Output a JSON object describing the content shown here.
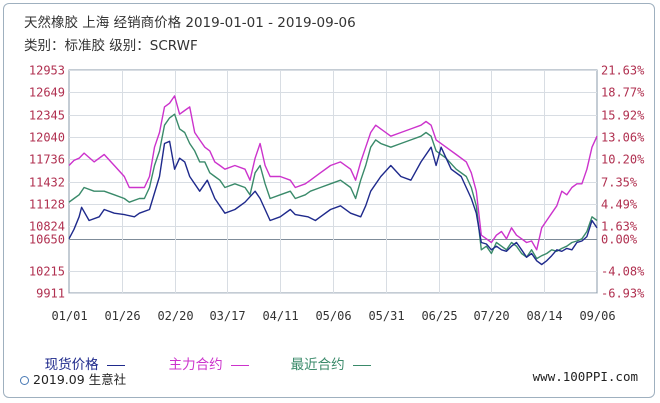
{
  "header": {
    "title": "天然橡胶 上海 经销商价格 2019-01-01 - 2019-09-06",
    "subtitle": "类别：标准胶 级别：SCRWF"
  },
  "legend": {
    "items": [
      {
        "label": "现货价格",
        "color": "#1f2a8c"
      },
      {
        "label": "主力合约",
        "color": "#cc33cc"
      },
      {
        "label": "最近合约",
        "color": "#3a8a6a"
      }
    ]
  },
  "footer": {
    "copyright": "2019.09 生意社",
    "site": "www.100PPI.com"
  },
  "colors": {
    "spot": "#1f2a8c",
    "main": "#cc33cc",
    "near": "#3a8a6a",
    "left_axis_text": "#b03050",
    "right_axis_text": "#b03050"
  },
  "chart_data": {
    "type": "line",
    "x_tick_labels": [
      "01/01",
      "01/26",
      "02/20",
      "03/17",
      "04/11",
      "05/06",
      "05/31",
      "06/25",
      "07/20",
      "08/14",
      "09/06"
    ],
    "left_ticks": [
      "12953",
      "12649",
      "12345",
      "12040",
      "11736",
      "11432",
      "11128",
      "10824",
      "10650",
      "10215",
      "9911"
    ],
    "right_ticks": [
      "21.63%",
      "18.77%",
      "15.92%",
      "13.06%",
      "10.20%",
      "7.35%",
      "4.49%",
      "1.63%",
      "0.00%",
      "-4.08%",
      "-6.93%"
    ],
    "ylim": [
      9911,
      12953
    ],
    "baseline": 10650,
    "grid": true,
    "legend_position": "bottom",
    "series": [
      {
        "name": "现货价格",
        "color_key": "spot",
        "points": [
          [
            0,
            10650
          ],
          [
            2,
            10780
          ],
          [
            4,
            10950
          ],
          [
            5,
            11080
          ],
          [
            8,
            10900
          ],
          [
            12,
            10950
          ],
          [
            14,
            11050
          ],
          [
            18,
            11000
          ],
          [
            22,
            10980
          ],
          [
            26,
            10950
          ],
          [
            28,
            11000
          ],
          [
            32,
            11050
          ],
          [
            36,
            11500
          ],
          [
            38,
            11950
          ],
          [
            40,
            11980
          ],
          [
            42,
            11600
          ],
          [
            44,
            11750
          ],
          [
            46,
            11700
          ],
          [
            48,
            11500
          ],
          [
            52,
            11300
          ],
          [
            55,
            11450
          ],
          [
            58,
            11200
          ],
          [
            62,
            11000
          ],
          [
            66,
            11050
          ],
          [
            70,
            11150
          ],
          [
            74,
            11300
          ],
          [
            76,
            11200
          ],
          [
            80,
            10900
          ],
          [
            84,
            10950
          ],
          [
            88,
            11050
          ],
          [
            90,
            10980
          ],
          [
            95,
            10950
          ],
          [
            98,
            10900
          ],
          [
            100,
            10950
          ],
          [
            104,
            11050
          ],
          [
            108,
            11100
          ],
          [
            112,
            11000
          ],
          [
            116,
            10950
          ],
          [
            118,
            11100
          ],
          [
            120,
            11300
          ],
          [
            124,
            11500
          ],
          [
            128,
            11650
          ],
          [
            132,
            11500
          ],
          [
            136,
            11450
          ],
          [
            140,
            11700
          ],
          [
            144,
            11900
          ],
          [
            146,
            11650
          ],
          [
            148,
            11900
          ],
          [
            152,
            11600
          ],
          [
            156,
            11500
          ],
          [
            160,
            11200
          ],
          [
            162,
            11000
          ],
          [
            164,
            10600
          ],
          [
            166,
            10580
          ],
          [
            168,
            10500
          ],
          [
            170,
            10550
          ],
          [
            172,
            10500
          ],
          [
            174,
            10480
          ],
          [
            176,
            10550
          ],
          [
            178,
            10600
          ],
          [
            180,
            10500
          ],
          [
            182,
            10400
          ],
          [
            184,
            10450
          ],
          [
            186,
            10350
          ],
          [
            188,
            10300
          ],
          [
            190,
            10350
          ],
          [
            192,
            10420
          ],
          [
            194,
            10500
          ],
          [
            196,
            10480
          ],
          [
            198,
            10520
          ],
          [
            200,
            10500
          ],
          [
            202,
            10600
          ],
          [
            204,
            10620
          ],
          [
            206,
            10680
          ],
          [
            208,
            10900
          ],
          [
            210,
            10800
          ]
        ]
      },
      {
        "name": "主力合约",
        "color_key": "main",
        "points": [
          [
            0,
            11650
          ],
          [
            2,
            11720
          ],
          [
            4,
            11750
          ],
          [
            6,
            11820
          ],
          [
            10,
            11700
          ],
          [
            14,
            11800
          ],
          [
            18,
            11650
          ],
          [
            22,
            11500
          ],
          [
            24,
            11350
          ],
          [
            28,
            11350
          ],
          [
            30,
            11350
          ],
          [
            32,
            11500
          ],
          [
            34,
            11900
          ],
          [
            36,
            12100
          ],
          [
            38,
            12450
          ],
          [
            40,
            12500
          ],
          [
            42,
            12600
          ],
          [
            44,
            12350
          ],
          [
            46,
            12400
          ],
          [
            48,
            12450
          ],
          [
            50,
            12100
          ],
          [
            52,
            12000
          ],
          [
            54,
            11900
          ],
          [
            56,
            11850
          ],
          [
            58,
            11700
          ],
          [
            60,
            11650
          ],
          [
            62,
            11600
          ],
          [
            66,
            11650
          ],
          [
            70,
            11600
          ],
          [
            72,
            11450
          ],
          [
            74,
            11750
          ],
          [
            76,
            11950
          ],
          [
            78,
            11650
          ],
          [
            80,
            11500
          ],
          [
            84,
            11500
          ],
          [
            88,
            11450
          ],
          [
            90,
            11350
          ],
          [
            94,
            11400
          ],
          [
            96,
            11450
          ],
          [
            100,
            11550
          ],
          [
            104,
            11650
          ],
          [
            108,
            11700
          ],
          [
            112,
            11600
          ],
          [
            114,
            11450
          ],
          [
            116,
            11700
          ],
          [
            118,
            11900
          ],
          [
            120,
            12100
          ],
          [
            122,
            12200
          ],
          [
            124,
            12150
          ],
          [
            128,
            12050
          ],
          [
            132,
            12100
          ],
          [
            136,
            12150
          ],
          [
            140,
            12200
          ],
          [
            142,
            12250
          ],
          [
            144,
            12200
          ],
          [
            146,
            12000
          ],
          [
            150,
            11900
          ],
          [
            154,
            11800
          ],
          [
            158,
            11700
          ],
          [
            160,
            11550
          ],
          [
            162,
            11300
          ],
          [
            164,
            10700
          ],
          [
            166,
            10650
          ],
          [
            168,
            10600
          ],
          [
            170,
            10700
          ],
          [
            172,
            10750
          ],
          [
            174,
            10650
          ],
          [
            176,
            10800
          ],
          [
            178,
            10700
          ],
          [
            180,
            10650
          ],
          [
            182,
            10600
          ],
          [
            184,
            10620
          ],
          [
            186,
            10500
          ],
          [
            188,
            10800
          ],
          [
            190,
            10900
          ],
          [
            192,
            11000
          ],
          [
            194,
            11100
          ],
          [
            196,
            11300
          ],
          [
            198,
            11250
          ],
          [
            200,
            11350
          ],
          [
            202,
            11400
          ],
          [
            204,
            11400
          ],
          [
            206,
            11600
          ],
          [
            208,
            11900
          ],
          [
            210,
            12050
          ]
        ]
      },
      {
        "name": "最近合约",
        "color_key": "near",
        "points": [
          [
            0,
            11150
          ],
          [
            2,
            11200
          ],
          [
            4,
            11250
          ],
          [
            6,
            11350
          ],
          [
            10,
            11300
          ],
          [
            14,
            11300
          ],
          [
            18,
            11250
          ],
          [
            22,
            11200
          ],
          [
            24,
            11150
          ],
          [
            28,
            11200
          ],
          [
            30,
            11200
          ],
          [
            32,
            11350
          ],
          [
            34,
            11650
          ],
          [
            36,
            11850
          ],
          [
            38,
            12200
          ],
          [
            40,
            12300
          ],
          [
            42,
            12350
          ],
          [
            44,
            12150
          ],
          [
            46,
            12100
          ],
          [
            48,
            11950
          ],
          [
            50,
            11850
          ],
          [
            52,
            11700
          ],
          [
            54,
            11700
          ],
          [
            56,
            11550
          ],
          [
            58,
            11500
          ],
          [
            60,
            11450
          ],
          [
            62,
            11350
          ],
          [
            66,
            11400
          ],
          [
            70,
            11350
          ],
          [
            72,
            11250
          ],
          [
            74,
            11550
          ],
          [
            76,
            11650
          ],
          [
            78,
            11400
          ],
          [
            80,
            11200
          ],
          [
            84,
            11250
          ],
          [
            88,
            11300
          ],
          [
            90,
            11200
          ],
          [
            94,
            11250
          ],
          [
            96,
            11300
          ],
          [
            100,
            11350
          ],
          [
            104,
            11400
          ],
          [
            108,
            11450
          ],
          [
            112,
            11350
          ],
          [
            114,
            11200
          ],
          [
            116,
            11450
          ],
          [
            118,
            11650
          ],
          [
            120,
            11900
          ],
          [
            122,
            12000
          ],
          [
            124,
            11950
          ],
          [
            128,
            11900
          ],
          [
            132,
            11950
          ],
          [
            136,
            12000
          ],
          [
            140,
            12050
          ],
          [
            142,
            12100
          ],
          [
            144,
            12050
          ],
          [
            146,
            11850
          ],
          [
            150,
            11750
          ],
          [
            154,
            11600
          ],
          [
            158,
            11500
          ],
          [
            160,
            11350
          ],
          [
            162,
            11100
          ],
          [
            164,
            10500
          ],
          [
            166,
            10550
          ],
          [
            168,
            10450
          ],
          [
            170,
            10600
          ],
          [
            172,
            10550
          ],
          [
            174,
            10500
          ],
          [
            176,
            10600
          ],
          [
            178,
            10550
          ],
          [
            180,
            10450
          ],
          [
            182,
            10400
          ],
          [
            184,
            10500
          ],
          [
            186,
            10380
          ],
          [
            188,
            10420
          ],
          [
            190,
            10450
          ],
          [
            192,
            10500
          ],
          [
            194,
            10480
          ],
          [
            196,
            10520
          ],
          [
            198,
            10550
          ],
          [
            200,
            10600
          ],
          [
            202,
            10620
          ],
          [
            204,
            10650
          ],
          [
            206,
            10750
          ],
          [
            208,
            10950
          ],
          [
            210,
            10900
          ]
        ]
      }
    ]
  }
}
